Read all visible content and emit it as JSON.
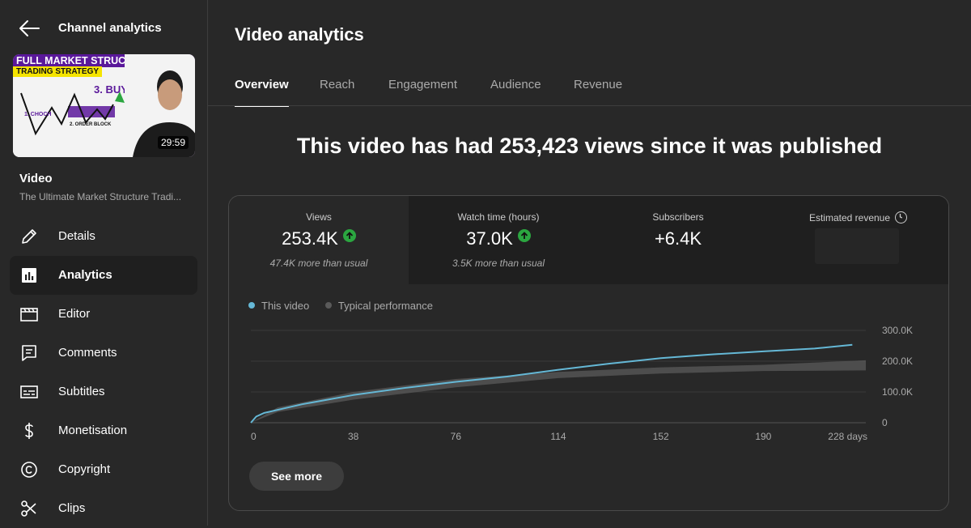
{
  "sidebar": {
    "title": "Channel analytics",
    "thumbnail": {
      "headline_line1": "FULL MARKET STRUCTURE",
      "headline_line2": "TRADING STRATEGY",
      "label_buy": "3. BUY",
      "label_choch": "1. CHOCH",
      "label_order_block": "2. ORDER BLOCK",
      "duration": "29:59"
    },
    "video_label": "Video",
    "video_name": "The Ultimate Market Structure Tradi...",
    "items": [
      {
        "label": "Details",
        "icon": "pencil-icon"
      },
      {
        "label": "Analytics",
        "icon": "analytics-icon",
        "active": true
      },
      {
        "label": "Editor",
        "icon": "clapperboard-icon"
      },
      {
        "label": "Comments",
        "icon": "comment-icon"
      },
      {
        "label": "Subtitles",
        "icon": "subtitles-icon"
      },
      {
        "label": "Monetisation",
        "icon": "dollar-icon"
      },
      {
        "label": "Copyright",
        "icon": "copyright-icon"
      },
      {
        "label": "Clips",
        "icon": "scissors-icon"
      }
    ]
  },
  "main": {
    "title": "Video analytics",
    "tabs": [
      {
        "label": "Overview",
        "active": true
      },
      {
        "label": "Reach"
      },
      {
        "label": "Engagement"
      },
      {
        "label": "Audience"
      },
      {
        "label": "Revenue"
      }
    ],
    "headline": "This video has had 253,423 views since it was published",
    "metrics": [
      {
        "label": "Views",
        "value": "253.4K",
        "note": "47.4K more than usual",
        "trend": "up"
      },
      {
        "label": "Watch time (hours)",
        "value": "37.0K",
        "note": "3.5K more than usual",
        "trend": "up"
      },
      {
        "label": "Subscribers",
        "value": "+6.4K",
        "note": ""
      },
      {
        "label": "Estimated revenue",
        "value": "",
        "note": ""
      }
    ],
    "see_more": "See more"
  },
  "colors": {
    "background": "#282828",
    "this_video": "#65b8d6",
    "typical": "#5a5a5a",
    "up_arrow": "#2ba640",
    "thumb_purple": "#5a189a",
    "thumb_yellow": "#f5e400"
  },
  "chart_data": {
    "type": "line",
    "x_ticks": [
      "0",
      "38",
      "76",
      "114",
      "152",
      "190",
      "228 days"
    ],
    "y_ticks": [
      "300.0K",
      "200.0K",
      "100.0K",
      "0"
    ],
    "xlim": [
      0,
      228
    ],
    "ylim": [
      0,
      300000
    ],
    "grid": true,
    "legend_position": "top-left",
    "series": [
      {
        "name": "This video",
        "x": [
          0,
          2,
          5,
          10,
          19,
          38,
          57,
          76,
          95,
          114,
          133,
          152,
          171,
          190,
          209,
          223
        ],
        "values": [
          0,
          20000,
          32000,
          42000,
          60000,
          90000,
          113000,
          133000,
          150000,
          172000,
          192000,
          210000,
          222000,
          232000,
          241000,
          253400
        ]
      },
      {
        "name": "Typical performance",
        "x": [
          0,
          10,
          38,
          76,
          114,
          152,
          190,
          228
        ],
        "low": [
          0,
          35000,
          75000,
          115000,
          145000,
          160000,
          168000,
          170000
        ],
        "high": [
          0,
          50000,
          100000,
          142000,
          165000,
          180000,
          188000,
          203000
        ]
      }
    ]
  }
}
